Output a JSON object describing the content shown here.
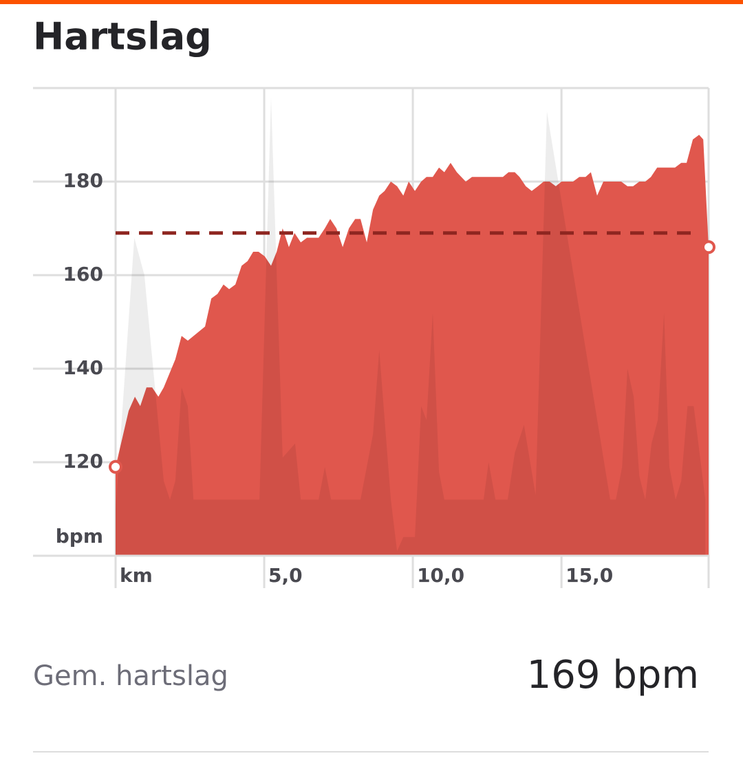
{
  "chart_data": {
    "type": "area",
    "title": "Hartslag",
    "y_axis_label": "bpm",
    "xlim": [
      0,
      19.95
    ],
    "ylim": [
      100,
      200
    ],
    "xticks": [
      {
        "value": 0,
        "label": "km"
      },
      {
        "value": 5,
        "label": "5,0"
      },
      {
        "value": 10,
        "label": "10,0"
      },
      {
        "value": 15,
        "label": "15,0"
      }
    ],
    "yticks": [
      120,
      140,
      160,
      180
    ],
    "grid": true,
    "series": [
      {
        "color": "#e0574d",
        "x": [
          0,
          0.44,
          0.65,
          0.83,
          1.04,
          1.23,
          1.44,
          1.62,
          2.01,
          2.22,
          2.43,
          3.01,
          3.22,
          3.43,
          3.63,
          3.82,
          4.03,
          4.24,
          4.44,
          4.63,
          4.81,
          5.02,
          5.23,
          5.42,
          5.62,
          5.83,
          6.02,
          6.23,
          6.44,
          6.83,
          7.04,
          7.22,
          7.43,
          7.64,
          7.85,
          8.06,
          8.24,
          8.45,
          8.66,
          8.87,
          9.05,
          9.26,
          9.47,
          9.68,
          9.86,
          10.07,
          10.28,
          10.46,
          10.67,
          10.88,
          11.06,
          11.27,
          11.48,
          11.78,
          11.99,
          13.03,
          13.22,
          13.43,
          13.59,
          13.8,
          14.0,
          14.21,
          14.4,
          14.6,
          14.81,
          15.0,
          15.39,
          15.6,
          15.81,
          15.99,
          16.2,
          16.41,
          17.01,
          17.22,
          17.41,
          17.62,
          17.82,
          18.01,
          18.22,
          18.82,
          19.03,
          19.21,
          19.42,
          19.63,
          19.77,
          19.95
        ],
        "values": [
          119,
          131,
          134,
          132,
          136,
          136,
          134,
          136,
          142,
          147,
          146,
          149,
          155,
          156,
          158,
          157,
          158,
          162,
          163,
          165,
          165,
          164,
          162,
          165,
          170,
          166,
          169,
          167,
          168,
          168,
          170,
          172,
          170,
          166,
          170,
          172,
          172,
          167,
          174,
          177,
          178,
          180,
          179,
          177,
          180,
          178,
          180,
          181,
          181,
          183,
          182,
          184,
          182,
          180,
          181,
          181,
          182,
          182,
          181,
          179,
          178,
          179,
          180,
          180,
          179,
          180,
          180,
          181,
          181,
          182,
          177,
          180,
          180,
          179,
          179,
          180,
          180,
          181,
          183,
          183,
          184,
          184,
          189,
          190,
          189,
          166
        ]
      },
      {
        "color": "#000000",
        "x": [
          0,
          0.63,
          0.97,
          1.62,
          1.83,
          2.01,
          2.22,
          2.43,
          2.62,
          4.84,
          5.23,
          5.62,
          6.04,
          6.23,
          6.83,
          7.04,
          7.25,
          8.24,
          8.66,
          8.87,
          9.26,
          9.47,
          9.68,
          10.07,
          10.28,
          10.46,
          10.67,
          10.88,
          11.06,
          12.38,
          12.55,
          12.78,
          13.19,
          13.43,
          13.74,
          14.13,
          14.51,
          16.64,
          16.83,
          17.04,
          17.22,
          17.43,
          17.62,
          17.82,
          18.03,
          18.24,
          18.45,
          18.63,
          18.84,
          19.03,
          19.24,
          19.45,
          19.84
        ],
        "values": [
          110,
          168,
          160,
          116,
          112,
          116,
          136,
          132,
          112,
          112,
          198,
          121,
          124,
          112,
          112,
          119,
          112,
          112,
          126,
          144,
          112,
          101,
          104,
          104,
          132,
          129,
          152,
          118,
          112,
          112,
          120,
          112,
          112,
          122,
          128,
          113,
          195,
          112,
          112,
          119,
          140,
          134,
          117,
          112,
          124,
          129,
          152,
          119,
          112,
          116,
          132,
          132,
          112
        ]
      }
    ],
    "summary": {
      "label": "Gem. hartslag",
      "value": 169,
      "value_label": "169 bpm"
    }
  }
}
